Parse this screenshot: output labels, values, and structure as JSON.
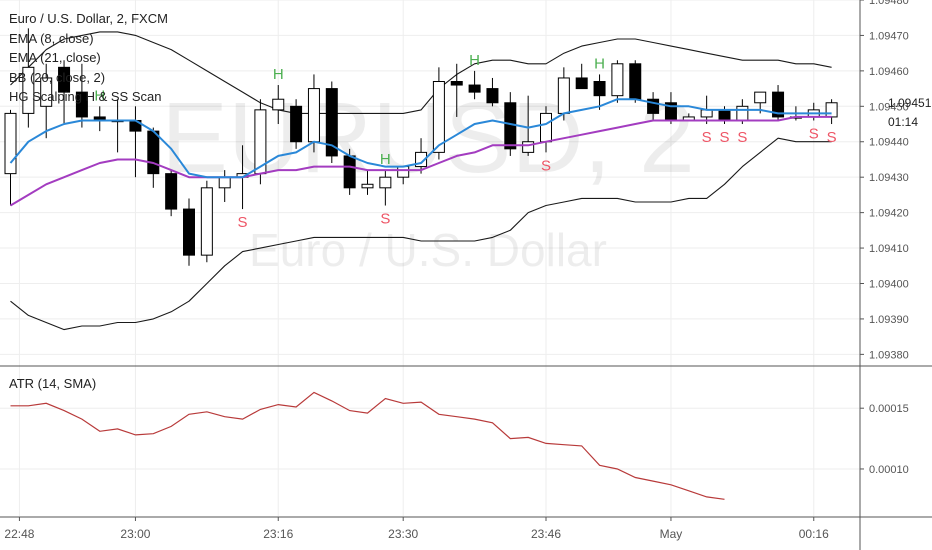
{
  "header": {
    "symbol_line": "Euro / U.S. Dollar, 2, FXCM",
    "indicators": [
      "EMA (8, close)",
      "EMA (21, close)",
      "BB (20, close, 2)",
      "HG Scalping H & SS Scan"
    ]
  },
  "watermark": {
    "symbol": "EURUSD, 2",
    "name": "Euro / U.S. Dollar"
  },
  "colors": {
    "ema8": "#2a88d8",
    "ema21": "#a33cc0",
    "bb": "#1a1a1a",
    "atr": "#b83a3a",
    "signal_h": "#4caf50",
    "signal_s": "#ee5566",
    "candle_up": "#ffffff",
    "candle_down": "#000000",
    "grid": "#eeeeee"
  },
  "countdown": "01:14",
  "chart_data": [
    {
      "type": "candlestick",
      "panel": "price",
      "y_ticks": [
        1.0938,
        1.0939,
        1.094,
        1.0941,
        1.0942,
        1.0943,
        1.0944,
        1.0945,
        1.0946,
        1.0947,
        1.0948
      ],
      "y_tick_labels": [
        "1.09380",
        "1.09390",
        "1.09400",
        "1.09410",
        "1.09420",
        "1.09430",
        "1.09440",
        "1.09450",
        "1.09460",
        "1.09470",
        "1.09480"
      ],
      "ylim": [
        1.09377,
        1.0948
      ],
      "last_price": "1.09451",
      "time_labels": [
        "22:48",
        "23:00",
        "23:16",
        "23:30",
        "23:46",
        "May",
        "00:16"
      ],
      "time_label_index": [
        0.5,
        7,
        15,
        22,
        30,
        37,
        45
      ],
      "candles": [
        {
          "o": 1.09431,
          "h": 1.09449,
          "l": 1.09422,
          "c": 1.09448
        },
        {
          "o": 1.09448,
          "h": 1.09472,
          "l": 1.09444,
          "c": 1.09461
        },
        {
          "o": 1.0945,
          "h": 1.09462,
          "l": 1.09441,
          "c": 1.09458
        },
        {
          "o": 1.09461,
          "h": 1.09463,
          "l": 1.09445,
          "c": 1.09454
        },
        {
          "o": 1.09454,
          "h": 1.09462,
          "l": 1.09444,
          "c": 1.09447
        },
        {
          "o": 1.09447,
          "h": 1.0945,
          "l": 1.09443,
          "c": 1.09446
        },
        {
          "o": 1.09446,
          "h": 1.09452,
          "l": 1.09437,
          "c": 1.09446
        },
        {
          "o": 1.09446,
          "h": 1.0945,
          "l": 1.0943,
          "c": 1.09443
        },
        {
          "o": 1.09443,
          "h": 1.09444,
          "l": 1.09427,
          "c": 1.09431
        },
        {
          "o": 1.09431,
          "h": 1.09432,
          "l": 1.09419,
          "c": 1.09421
        },
        {
          "o": 1.09421,
          "h": 1.09424,
          "l": 1.09405,
          "c": 1.09408
        },
        {
          "o": 1.09408,
          "h": 1.09429,
          "l": 1.09406,
          "c": 1.09427
        },
        {
          "o": 1.09427,
          "h": 1.09432,
          "l": 1.09423,
          "c": 1.0943
        },
        {
          "o": 1.0943,
          "h": 1.09439,
          "l": 1.09421,
          "c": 1.09431
        },
        {
          "o": 1.09431,
          "h": 1.09452,
          "l": 1.09428,
          "c": 1.09449
        },
        {
          "o": 1.09449,
          "h": 1.09456,
          "l": 1.09445,
          "c": 1.09452
        },
        {
          "o": 1.0945,
          "h": 1.09452,
          "l": 1.09438,
          "c": 1.0944
        },
        {
          "o": 1.0944,
          "h": 1.09459,
          "l": 1.09437,
          "c": 1.09455
        },
        {
          "o": 1.09455,
          "h": 1.09457,
          "l": 1.09434,
          "c": 1.09436
        },
        {
          "o": 1.09436,
          "h": 1.09438,
          "l": 1.09425,
          "c": 1.09427
        },
        {
          "o": 1.09427,
          "h": 1.09432,
          "l": 1.09425,
          "c": 1.09428
        },
        {
          "o": 1.09427,
          "h": 1.09432,
          "l": 1.09422,
          "c": 1.0943
        },
        {
          "o": 1.0943,
          "h": 1.09433,
          "l": 1.09428,
          "c": 1.09433
        },
        {
          "o": 1.09433,
          "h": 1.09441,
          "l": 1.09431,
          "c": 1.09437
        },
        {
          "o": 1.09437,
          "h": 1.09461,
          "l": 1.09435,
          "c": 1.09457
        },
        {
          "o": 1.09457,
          "h": 1.09462,
          "l": 1.09447,
          "c": 1.09456
        },
        {
          "o": 1.09456,
          "h": 1.0946,
          "l": 1.09452,
          "c": 1.09454
        },
        {
          "o": 1.09455,
          "h": 1.09458,
          "l": 1.0945,
          "c": 1.09451
        },
        {
          "o": 1.09451,
          "h": 1.09454,
          "l": 1.09436,
          "c": 1.09438
        },
        {
          "o": 1.09437,
          "h": 1.09453,
          "l": 1.09436,
          "c": 1.0944
        },
        {
          "o": 1.0944,
          "h": 1.0945,
          "l": 1.09437,
          "c": 1.09448
        },
        {
          "o": 1.09448,
          "h": 1.09461,
          "l": 1.09446,
          "c": 1.09458
        },
        {
          "o": 1.09458,
          "h": 1.09462,
          "l": 1.09455,
          "c": 1.09455
        },
        {
          "o": 1.09457,
          "h": 1.09459,
          "l": 1.09449,
          "c": 1.09453
        },
        {
          "o": 1.09453,
          "h": 1.09463,
          "l": 1.09451,
          "c": 1.09462
        },
        {
          "o": 1.09462,
          "h": 1.09463,
          "l": 1.09451,
          "c": 1.09452
        },
        {
          "o": 1.09452,
          "h": 1.09454,
          "l": 1.09446,
          "c": 1.09448
        },
        {
          "o": 1.09451,
          "h": 1.09454,
          "l": 1.09445,
          "c": 1.09446
        },
        {
          "o": 1.09446,
          "h": 1.09448,
          "l": 1.09446,
          "c": 1.09447
        },
        {
          "o": 1.09447,
          "h": 1.09453,
          "l": 1.09445,
          "c": 1.09449
        },
        {
          "o": 1.09449,
          "h": 1.0945,
          "l": 1.09445,
          "c": 1.09446
        },
        {
          "o": 1.09446,
          "h": 1.09452,
          "l": 1.09445,
          "c": 1.0945
        },
        {
          "o": 1.09451,
          "h": 1.09454,
          "l": 1.09448,
          "c": 1.09454
        },
        {
          "o": 1.09454,
          "h": 1.09456,
          "l": 1.09446,
          "c": 1.09447
        },
        {
          "o": 1.09447,
          "h": 1.0945,
          "l": 1.09446,
          "c": 1.09447
        },
        {
          "o": 1.09447,
          "h": 1.09451,
          "l": 1.09446,
          "c": 1.09449
        },
        {
          "o": 1.09447,
          "h": 1.09452,
          "l": 1.09445,
          "c": 1.09451
        }
      ],
      "bb_upper": [
        1.09456,
        1.09461,
        1.09466,
        1.09469,
        1.0947,
        1.09471,
        1.09471,
        1.0947,
        1.09468,
        1.09466,
        1.09463,
        1.0946,
        1.09457,
        1.09454,
        1.09451,
        1.09449,
        1.09448,
        1.09448,
        1.09448,
        1.09448,
        1.09448,
        1.09448,
        1.09448,
        1.09449,
        1.09455,
        1.09459,
        1.09462,
        1.09463,
        1.09463,
        1.09462,
        1.09462,
        1.09465,
        1.09467,
        1.09468,
        1.09469,
        1.09469,
        1.09468,
        1.09467,
        1.09466,
        1.09465,
        1.09464,
        1.09463,
        1.09463,
        1.09463,
        1.09462,
        1.09462,
        1.09461
      ],
      "bb_lower": [
        1.09395,
        1.09391,
        1.09389,
        1.09387,
        1.09388,
        1.09388,
        1.09389,
        1.09389,
        1.0939,
        1.09392,
        1.09395,
        1.094,
        1.09405,
        1.09409,
        1.0941,
        1.09411,
        1.09412,
        1.09413,
        1.09413,
        1.09413,
        1.09413,
        1.09413,
        1.09413,
        1.09412,
        1.09412,
        1.09412,
        1.09412,
        1.09413,
        1.09415,
        1.0942,
        1.09422,
        1.09423,
        1.09424,
        1.09424,
        1.09424,
        1.09423,
        1.09423,
        1.09423,
        1.09424,
        1.09424,
        1.09428,
        1.09433,
        1.09437,
        1.09441,
        1.0944,
        1.0944,
        1.0944
      ],
      "ema8": [
        1.09434,
        1.0944,
        1.09443,
        1.09445,
        1.09446,
        1.09446,
        1.09446,
        1.09446,
        1.09443,
        1.09438,
        1.09431,
        1.0943,
        1.0943,
        1.0943,
        1.09433,
        1.09436,
        1.09437,
        1.0944,
        1.09439,
        1.09436,
        1.09434,
        1.09433,
        1.09433,
        1.09434,
        1.09439,
        1.09442,
        1.09445,
        1.09446,
        1.09445,
        1.09444,
        1.09445,
        1.09448,
        1.09449,
        1.0945,
        1.09452,
        1.09452,
        1.09451,
        1.0945,
        1.0945,
        1.09449,
        1.09449,
        1.09449,
        1.09449,
        1.09448,
        1.09448,
        1.09448,
        1.09448
      ],
      "ema21": [
        1.09422,
        1.09425,
        1.09428,
        1.0943,
        1.09432,
        1.09434,
        1.09435,
        1.09435,
        1.09434,
        1.09432,
        1.0943,
        1.0943,
        1.0943,
        1.0943,
        1.09431,
        1.09432,
        1.09432,
        1.09433,
        1.09433,
        1.09433,
        1.09432,
        1.09432,
        1.09432,
        1.09432,
        1.09434,
        1.09436,
        1.09437,
        1.09439,
        1.09439,
        1.09439,
        1.0944,
        1.09441,
        1.09442,
        1.09443,
        1.09444,
        1.09445,
        1.09446,
        1.09446,
        1.09446,
        1.09446,
        1.09446,
        1.09446,
        1.09446,
        1.09446,
        1.09447,
        1.09447,
        1.09447
      ],
      "signals": [
        {
          "index": 5,
          "type": "H"
        },
        {
          "index": 15,
          "type": "H"
        },
        {
          "index": 21,
          "type": "H"
        },
        {
          "index": 26,
          "type": "H"
        },
        {
          "index": 33,
          "type": "H"
        },
        {
          "index": 13,
          "type": "S"
        },
        {
          "index": 21,
          "type": "S"
        },
        {
          "index": 30,
          "type": "S"
        },
        {
          "index": 39,
          "type": "S"
        },
        {
          "index": 40,
          "type": "S"
        },
        {
          "index": 41,
          "type": "S"
        },
        {
          "index": 45,
          "type": "S"
        },
        {
          "index": 46,
          "type": "S"
        }
      ]
    },
    {
      "type": "line",
      "panel": "indicator",
      "title": "ATR (14, SMA)",
      "y_ticks": [
        0.0001,
        0.00015
      ],
      "y_tick_labels": [
        "0.00010",
        "0.00015"
      ],
      "ylim": [
        6.13e-05,
        0.0001839
      ],
      "values": [
        0.000152,
        0.000152,
        0.000154,
        0.000148,
        0.000141,
        0.000131,
        0.000133,
        0.000128,
        0.000129,
        0.000135,
        0.000145,
        0.000147,
        0.000143,
        0.000141,
        0.000149,
        0.000153,
        0.000151,
        0.000163,
        0.000156,
        0.000148,
        0.000146,
        0.000158,
        0.000154,
        0.000155,
        0.000145,
        0.000143,
        0.000141,
        0.000138,
        0.000125,
        0.000126,
        0.000121,
        0.00012,
        0.000119,
        0.000103,
        0.0001,
        9.3e-05,
        9e-05,
        8.7e-05,
        8.2e-05,
        7.7e-05,
        7.5e-05
      ]
    }
  ]
}
